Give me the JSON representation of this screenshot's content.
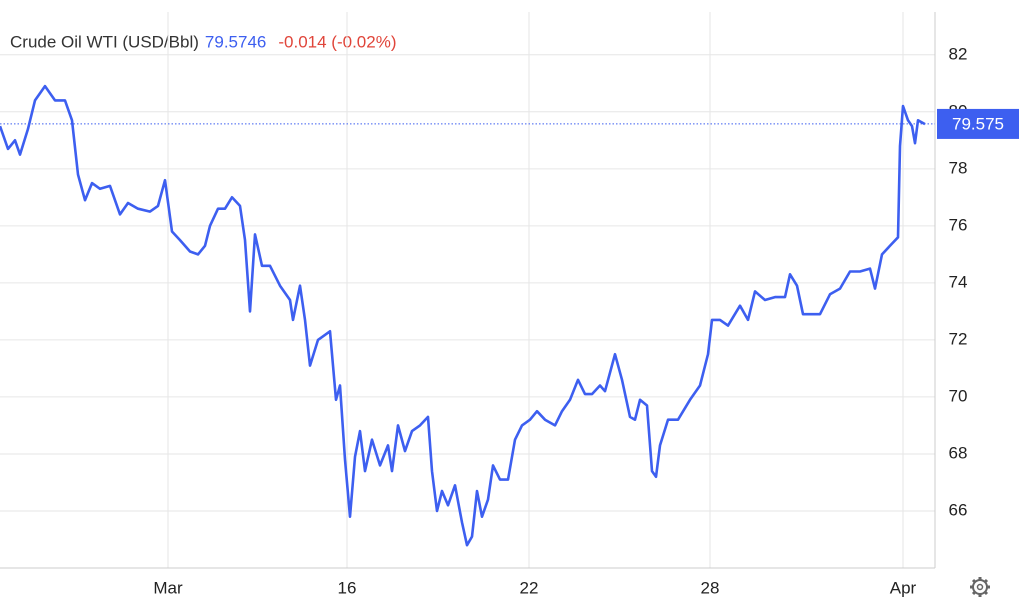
{
  "chart_data": {
    "type": "line",
    "series": [
      {
        "name": "Crude Oil WTI (USD/Bbl)",
        "color": "#3d5ff0",
        "values": [
          79.5,
          78.7,
          79.0,
          78.5,
          79.4,
          80.4,
          80.9,
          80.4,
          80.4,
          79.7,
          77.8,
          76.9,
          77.5,
          77.3,
          77.4,
          76.4,
          76.8,
          76.6,
          76.5,
          76.7,
          77.6,
          75.8,
          75.5,
          75.1,
          75.0,
          75.3,
          76.0,
          76.6,
          76.6,
          77.0,
          76.7,
          75.5,
          73.0,
          75.7,
          74.6,
          74.6,
          73.9,
          73.4,
          72.7,
          73.9,
          72.7,
          71.1,
          72.0,
          72.3,
          69.9,
          70.4,
          67.8,
          65.8,
          67.9,
          68.8,
          67.4,
          68.5,
          67.6,
          68.3,
          67.4,
          69.0,
          68.1,
          68.8,
          69.0,
          69.3,
          67.4,
          66.0,
          66.7,
          66.2,
          66.9,
          65.6,
          64.8,
          65.1,
          66.7,
          65.8,
          66.4,
          67.6,
          67.1,
          67.1,
          68.5,
          69.0,
          69.2,
          69.5,
          69.2,
          69.0,
          69.5,
          69.9,
          70.6,
          70.1,
          70.1,
          70.4,
          70.2,
          71.5,
          70.6,
          69.3,
          69.2,
          69.9,
          69.7,
          67.4,
          67.2,
          68.3,
          69.2,
          69.2,
          69.9,
          70.4,
          71.5,
          72.7,
          72.7,
          72.5,
          73.2,
          72.7,
          73.7,
          73.4,
          73.5,
          73.5,
          74.3,
          73.9,
          72.9,
          72.9,
          72.9,
          73.6,
          73.8,
          74.4,
          74.4,
          74.5,
          73.8,
          75.0,
          75.3,
          75.6,
          78.8,
          80.2,
          79.7,
          79.5,
          78.9,
          79.7,
          79.57
        ]
      }
    ],
    "x": [
      0,
      0.8,
      1.5,
      2.0,
      2.8,
      3.5,
      4.5,
      5.5,
      6.5,
      7.2,
      7.8,
      8.5,
      9.2,
      10.0,
      11.0,
      12.0,
      12.8,
      13.8,
      15.0,
      15.8,
      16.5,
      17.2,
      18.0,
      19.0,
      19.8,
      20.5,
      21.0,
      21.8,
      22.5,
      23.2,
      24.0,
      24.5,
      25.0,
      25.5,
      26.2,
      27.0,
      28.0,
      29.0,
      29.3,
      30.0,
      30.5,
      31.0,
      31.8,
      33.0,
      33.6,
      34.0,
      34.5,
      35.0,
      35.5,
      36.0,
      36.5,
      37.2,
      38.0,
      38.8,
      39.2,
      39.8,
      40.5,
      41.2,
      42.0,
      42.8,
      43.2,
      43.7,
      44.2,
      44.8,
      45.5,
      46.2,
      46.7,
      47.2,
      47.7,
      48.2,
      48.8,
      49.3,
      50.0,
      50.8,
      51.5,
      52.2,
      53.0,
      53.7,
      54.5,
      55.5,
      56.2,
      57.0,
      57.8,
      58.5,
      59.2,
      60.0,
      60.5,
      61.5,
      62.2,
      63.0,
      63.5,
      64.0,
      64.7,
      65.2,
      65.6,
      66.0,
      66.8,
      67.8,
      69.0,
      70.0,
      70.8,
      71.2,
      72.0,
      72.8,
      74.0,
      74.8,
      75.5,
      76.5,
      77.5,
      78.5,
      79.0,
      79.7,
      80.3,
      81.0,
      82.0,
      83.0,
      84.0,
      85.0,
      86.0,
      87.0,
      87.5,
      88.2,
      89.0,
      89.8,
      90.0,
      90.3,
      90.8,
      91.2,
      91.5,
      91.8,
      92.5
    ],
    "xlim": [
      0,
      93.5
    ],
    "xticks": [
      {
        "value": 16.8,
        "label": "Mar"
      },
      {
        "value": 34.7,
        "label": "16"
      },
      {
        "value": 52.9,
        "label": "22"
      },
      {
        "value": 71.0,
        "label": "28"
      },
      {
        "value": 90.3,
        "label": "Apr"
      }
    ],
    "ylim": [
      64,
      83.5
    ],
    "yticks": [
      66,
      68,
      70,
      72,
      74,
      76,
      78,
      80,
      82
    ],
    "grid": true,
    "price": 79.5746,
    "change": "-0.014 (-0.02%)",
    "price_line": {
      "value": 79.5746,
      "label": "79.575"
    }
  }
}
